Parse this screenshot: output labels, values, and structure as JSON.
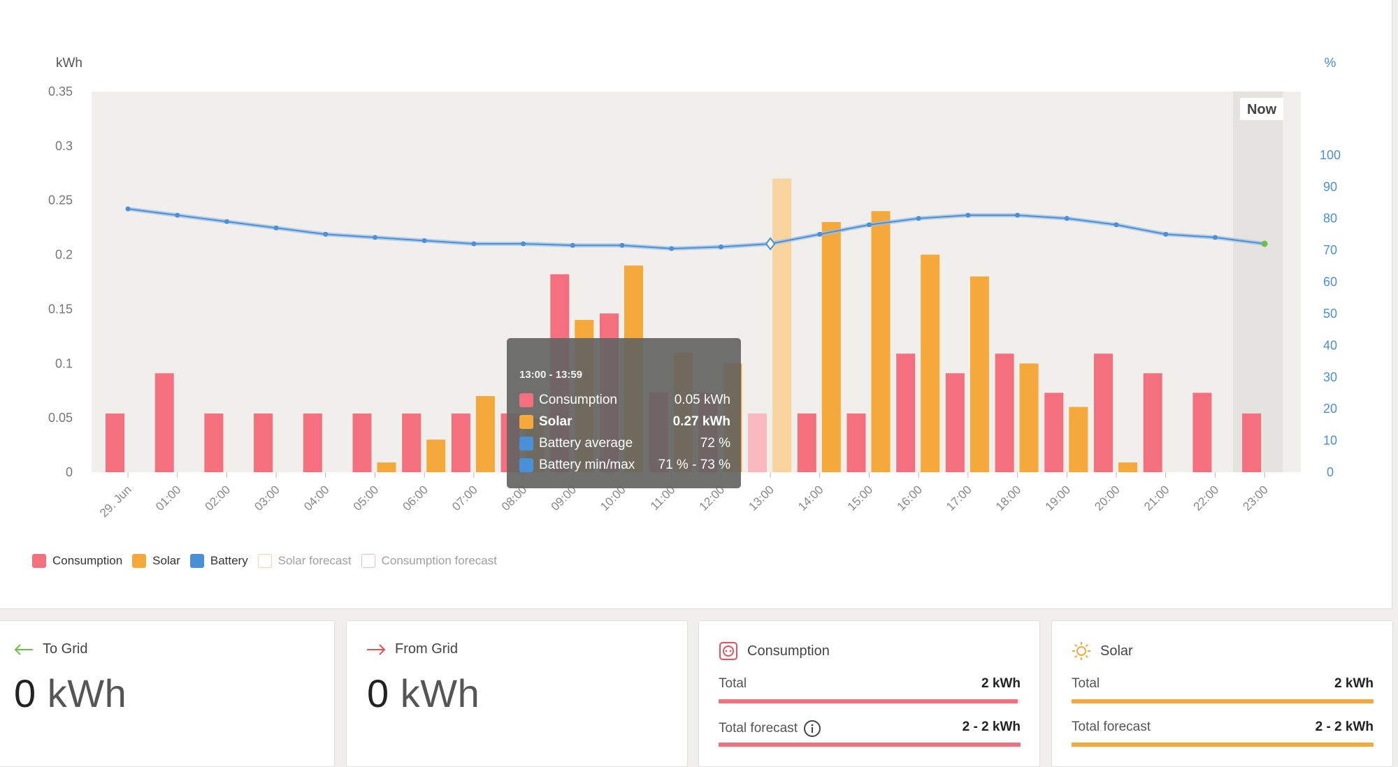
{
  "colors": {
    "consumption": "#f4707e",
    "solar": "#f6a93b",
    "battery": "#4a90d9",
    "solar_forecast": "#fad49f",
    "consumption_forecast": "#f9b9bf",
    "plot_bg": "#f0efec",
    "now_bg": "#e4e3df"
  },
  "chart_data": {
    "type": "bar",
    "ylabel_left": "kWh",
    "ylabel_right": "%",
    "ylim_left": [
      0,
      0.35
    ],
    "yticks_left": [
      "0.35",
      "0.3",
      "0.25",
      "0.2",
      "0.15",
      "0.1",
      "0.05",
      "0"
    ],
    "ylim_right": [
      0,
      120
    ],
    "yticks_right": [
      "100",
      "90",
      "80",
      "70",
      "60",
      "50",
      "40",
      "30",
      "20",
      "10",
      "0"
    ],
    "categories": [
      "29. Jun",
      "01:00",
      "02:00",
      "03:00",
      "04:00",
      "05:00",
      "06:00",
      "07:00",
      "08:00",
      "09:00",
      "10:00",
      "11:00",
      "12:00",
      "13:00",
      "14:00",
      "15:00",
      "16:00",
      "17:00",
      "18:00",
      "19:00",
      "20:00",
      "21:00",
      "22:00",
      "23:00"
    ],
    "series": [
      {
        "name": "Consumption",
        "values": [
          0.054,
          0.091,
          0.054,
          0.054,
          0.054,
          0.054,
          0.054,
          0.054,
          0.054,
          0.182,
          0.146,
          0.073,
          0.073,
          0.054,
          0.054,
          0.054,
          0.109,
          0.091,
          0.109,
          0.073,
          0.109,
          0.091,
          0.073,
          0.054
        ]
      },
      {
        "name": "Solar",
        "values": [
          0,
          0,
          0,
          0,
          0,
          0.009,
          0.03,
          0.07,
          0.05,
          0.14,
          0.19,
          0.11,
          0.1,
          0.27,
          0.23,
          0.24,
          0.2,
          0.18,
          0.1,
          0.06,
          0.009,
          0,
          0,
          0
        ]
      },
      {
        "name": "Battery",
        "unit": "%",
        "values": [
          83,
          81,
          79,
          77,
          75,
          74,
          73,
          72,
          72,
          71.5,
          71.5,
          70.5,
          71,
          72,
          75,
          78,
          80,
          81,
          81,
          80,
          78,
          75,
          74,
          72
        ]
      }
    ],
    "forecast_index": 13,
    "now_label": "Now",
    "legend": [
      "Consumption",
      "Solar",
      "Battery",
      "Solar forecast",
      "Consumption forecast"
    ],
    "legend_position": "bottom-left",
    "grid": false
  },
  "tooltip": {
    "time": "13:00 - 13:59",
    "rows": [
      {
        "name": "Consumption",
        "value": "0.05 kWh"
      },
      {
        "name": "Solar",
        "value": "0.27 kWh"
      },
      {
        "name": "Battery average",
        "value": "72 %"
      },
      {
        "name": "Battery min/max",
        "value": "71 % - 73 %"
      }
    ]
  },
  "cards": {
    "to_grid": {
      "title": "To Grid",
      "value": "0",
      "unit": "kWh"
    },
    "from_grid": {
      "title": "From Grid",
      "value": "0",
      "unit": "kWh"
    },
    "consumption": {
      "title": "Consumption",
      "total_label": "Total",
      "total_value": "2 kWh",
      "forecast_label": "Total forecast",
      "forecast_value": "2 - 2 kWh",
      "total_fraction": 0.99,
      "forecast_fraction": 1.0
    },
    "solar": {
      "title": "Solar",
      "total_label": "Total",
      "total_value": "2 kWh",
      "forecast_label": "Total forecast",
      "forecast_value": "2 - 2 kWh",
      "total_fraction": 1.0,
      "forecast_fraction": 1.0
    }
  }
}
